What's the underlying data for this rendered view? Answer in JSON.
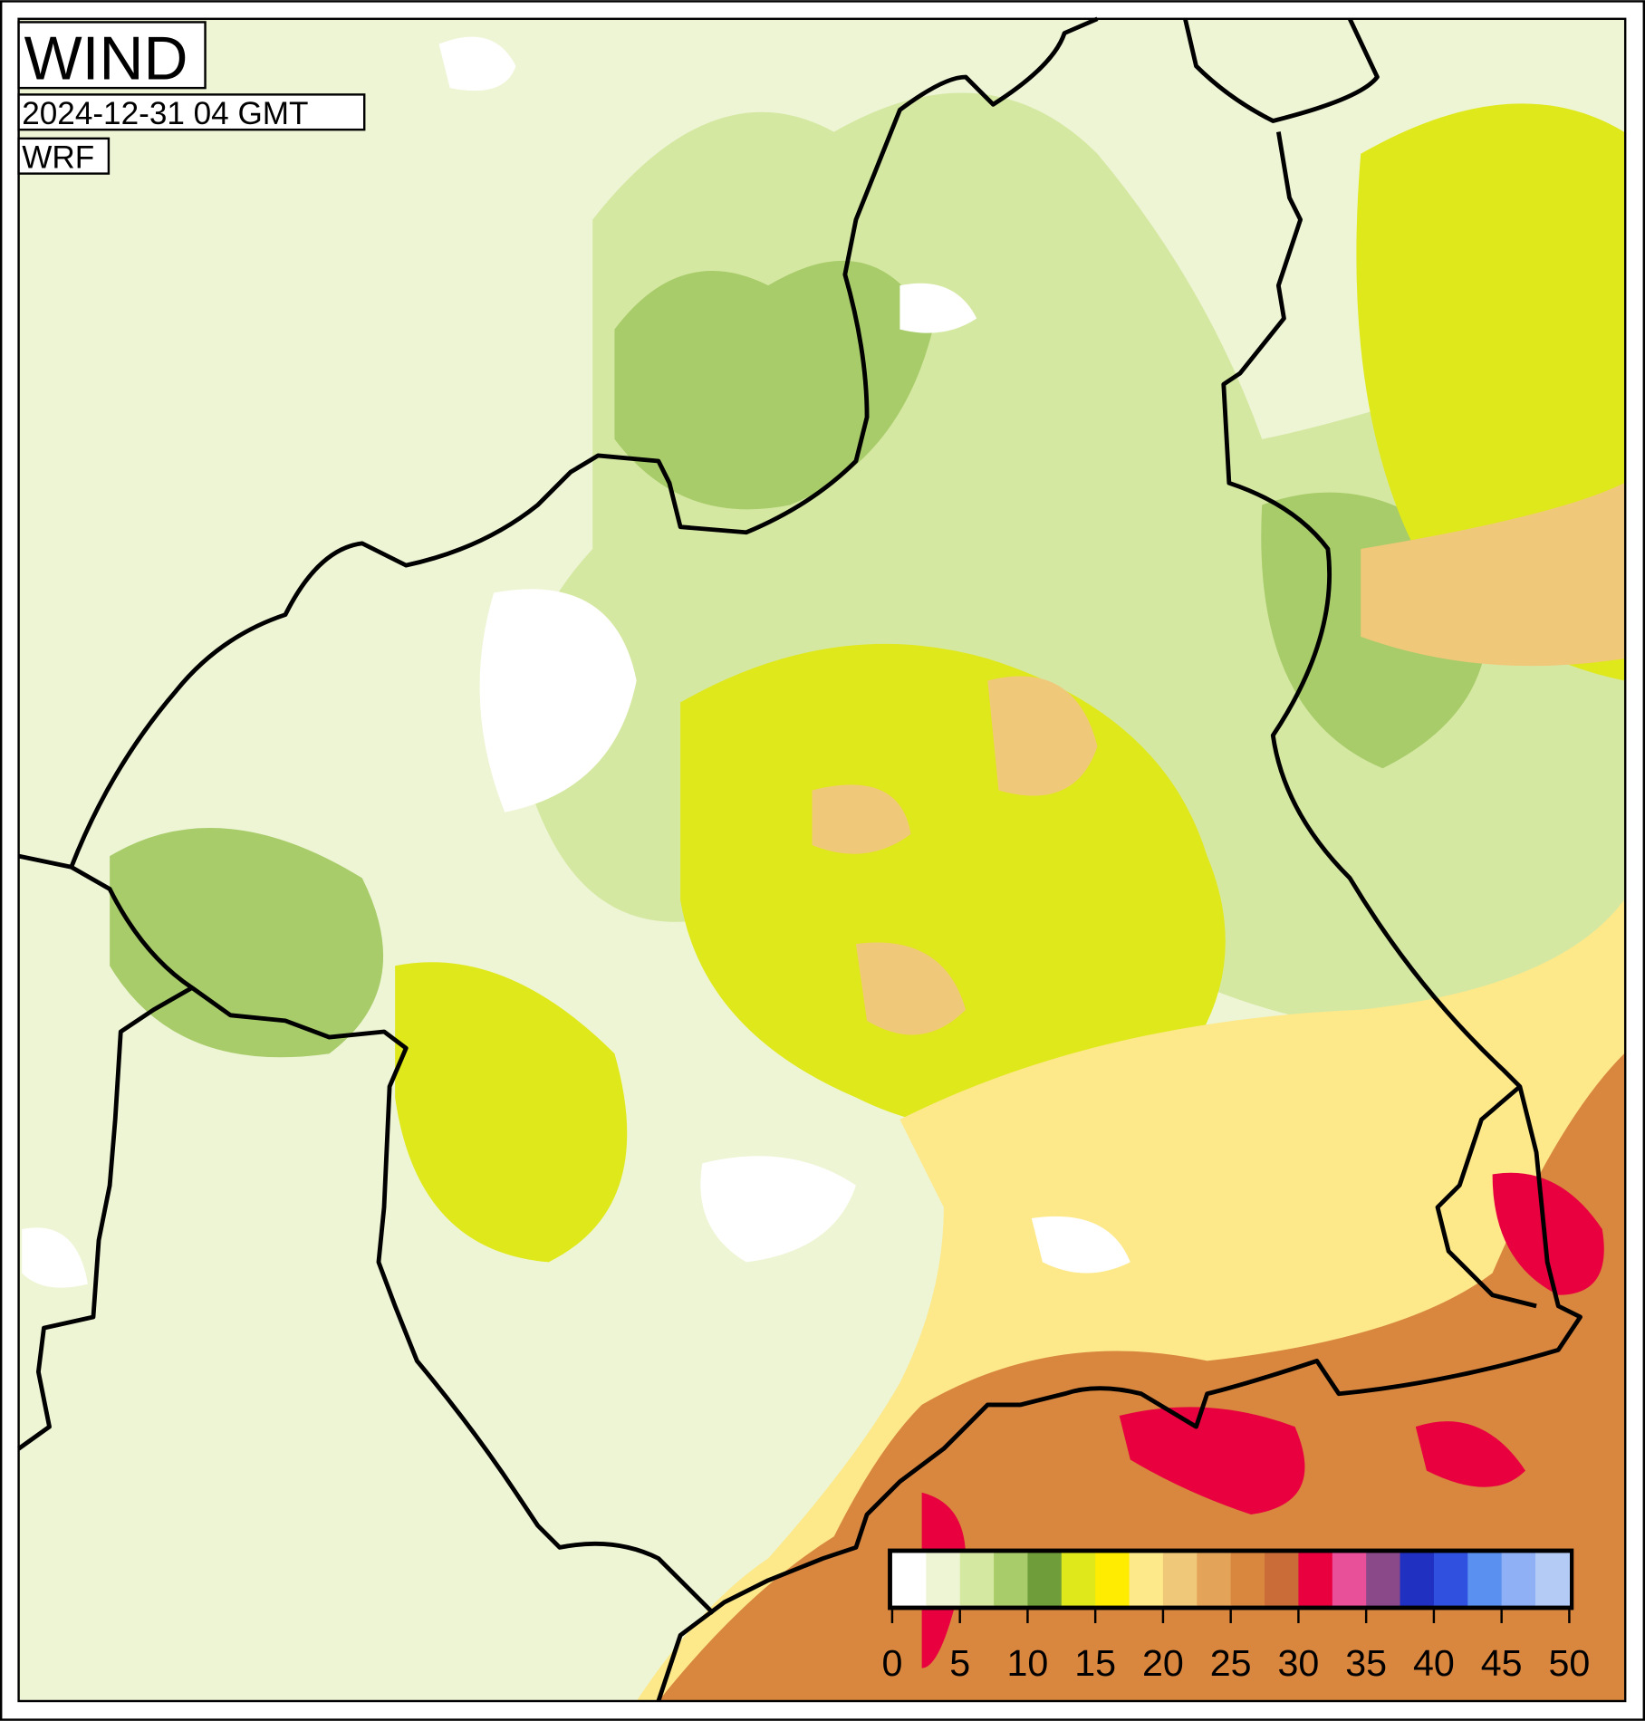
{
  "header": {
    "title": "WIND",
    "valid_time": "2024-12-31 04 GMT",
    "model": "WRF"
  },
  "colorbar": {
    "range": [
      0,
      50
    ],
    "ticks": [
      0,
      5,
      10,
      15,
      20,
      25,
      30,
      35,
      40,
      45,
      50
    ],
    "colors": [
      "#ffffff",
      "#eef5d5",
      "#d5e8a2",
      "#a8cc6a",
      "#6f9d3a",
      "#dfe81a",
      "#ffec00",
      "#fde88a",
      "#f0c87a",
      "#e3a45a",
      "#d9863e",
      "#c96c38",
      "#e8003f",
      "#e8509a",
      "#8a4a8a",
      "#2030c0",
      "#3050e0",
      "#5a90f0",
      "#8fb0f5",
      "#b4ccf5"
    ]
  }
}
